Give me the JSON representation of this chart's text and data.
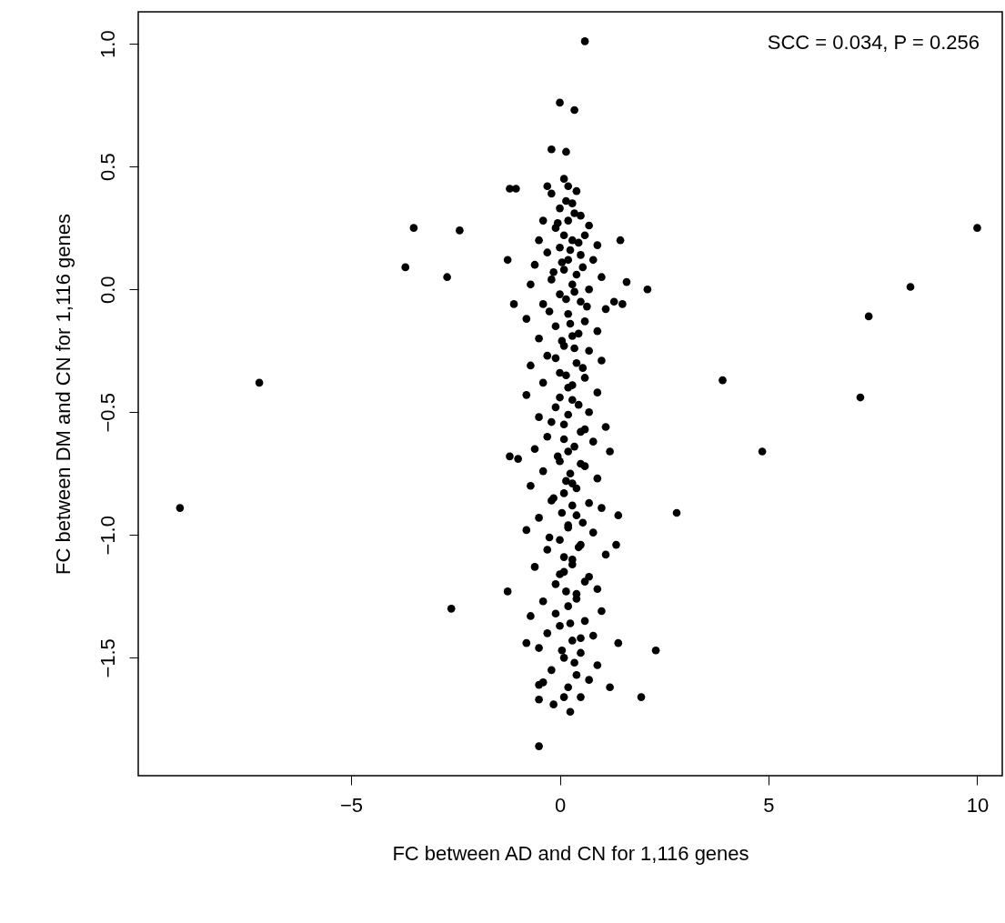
{
  "chart_data": {
    "type": "scatter",
    "xlabel": "FC between AD and CN for 1,116 genes",
    "ylabel": "FC between DM and CN for 1,116 genes",
    "annotations": [
      "SCC = 0.034, P = 0.256"
    ],
    "marker": "circle",
    "grid": false,
    "xlim": [
      -10.1,
      10.6
    ],
    "ylim": [
      -1.98,
      1.13
    ],
    "xticks": [
      {
        "value": -5,
        "label": "−5"
      },
      0,
      5,
      10
    ],
    "yticks": [
      {
        "value": -1.5,
        "label": "−1.5"
      },
      {
        "value": -1,
        "label": "−1.0"
      },
      {
        "value": -0.5,
        "label": "−0.5"
      },
      {
        "value": 0,
        "label": "0.0"
      },
      0.5,
      {
        "value": 1,
        "label": "1.0"
      }
    ],
    "series": [
      {
        "color": "#000000",
        "x": [
          -9.1,
          -7.2,
          -3.7,
          -3.5,
          -2.7,
          -2.4,
          -2.6,
          -1.25,
          2.8,
          3.9,
          4.85,
          7.2,
          7.4,
          8.4,
          10.0,
          2.3,
          1.95,
          2.1,
          0.6,
          0.0,
          0.35,
          -0.2,
          0.15,
          -1.2,
          -1.05,
          -0.5,
          -1.25,
          -1.1,
          1.45,
          1.3,
          1.5,
          1.6,
          1.4,
          1.35,
          1.4,
          1.2,
          -1.2,
          -1.0,
          -0.8,
          -0.5,
          -0.5,
          0.25,
          0.1,
          0.5,
          -0.15,
          0.1,
          0.2,
          -0.3,
          0.4,
          -0.2,
          0.3,
          0.0,
          0.5,
          -0.4,
          0.2,
          0.7,
          -0.1,
          0.1,
          0.6,
          -0.5,
          0.3,
          0.9,
          0.0,
          -0.3,
          0.5,
          0.2,
          0.8,
          -0.6,
          0.1,
          0.4,
          1.0,
          -0.2,
          0.3,
          -0.7,
          0.7,
          0.0,
          0.5,
          -0.4,
          1.1,
          0.2,
          -0.8,
          0.6,
          -0.1,
          0.9,
          0.3,
          -0.5,
          0.1,
          0.7,
          -0.3,
          1.0,
          0.4,
          -0.7,
          0.0,
          0.6,
          -0.4,
          0.2,
          0.9,
          -0.8,
          0.3,
          -0.1,
          0.7,
          -0.5,
          0.1,
          1.1,
          0.5,
          -0.3,
          0.8,
          -0.6,
          0.2,
          1.2,
          0.0,
          0.6,
          -0.4,
          0.9,
          0.3,
          -0.7,
          0.1,
          -0.2,
          0.7,
          1.0,
          0.4,
          -0.5,
          0.2,
          -0.8,
          0.8,
          0.0,
          0.5,
          -0.3,
          1.1,
          0.3,
          -0.6,
          0.1,
          0.7,
          -0.1,
          0.9,
          0.4,
          -0.4,
          0.2,
          1.0,
          -0.7,
          0.6,
          0.0,
          -0.3,
          0.8,
          0.3,
          -0.5,
          0.5,
          0.1,
          0.9,
          -0.2,
          0.4,
          0.7,
          -0.4,
          0.2,
          0.15,
          0.35,
          -0.05,
          0.45,
          0.25,
          0.05,
          0.55,
          -0.15,
          0.35,
          0.15,
          0.65,
          -0.25,
          0.25,
          0.45,
          0.05,
          0.35,
          -0.1,
          0.55,
          0.15,
          0.3,
          0.0,
          0.45,
          0.2,
          -0.2,
          0.6,
          0.1,
          0.35,
          -0.05,
          0.5,
          0.25,
          0.15,
          0.4,
          -0.15,
          0.3,
          0.05,
          0.55,
          0.2,
          -0.25,
          0.45,
          0.1,
          0.3,
          0.0,
          0.6,
          0.15,
          0.4,
          -0.1,
          0.25,
          0.5,
          0.05,
          0.35
        ],
        "values": [
          -0.89,
          -0.38,
          0.09,
          0.25,
          0.05,
          0.24,
          -1.3,
          -1.23,
          -0.91,
          -0.37,
          -0.66,
          -0.44,
          -0.11,
          0.01,
          0.25,
          -1.47,
          -1.66,
          0.0,
          1.01,
          0.76,
          0.73,
          0.57,
          0.56,
          0.41,
          0.41,
          -1.86,
          0.12,
          -0.06,
          0.2,
          -0.05,
          -0.06,
          0.03,
          -0.92,
          -1.04,
          -1.44,
          -1.62,
          -0.68,
          -0.69,
          -1.44,
          -1.61,
          -1.67,
          -1.72,
          -1.66,
          -1.66,
          -1.69,
          0.45,
          0.42,
          0.42,
          0.4,
          0.39,
          0.35,
          0.33,
          0.3,
          0.28,
          0.28,
          0.26,
          0.25,
          0.22,
          0.22,
          0.2,
          0.2,
          0.18,
          0.17,
          0.15,
          0.14,
          0.12,
          0.12,
          0.1,
          0.08,
          0.06,
          0.05,
          0.04,
          0.02,
          0.02,
          0.0,
          -0.02,
          -0.05,
          -0.06,
          -0.08,
          -0.1,
          -0.12,
          -0.13,
          -0.15,
          -0.17,
          -0.19,
          -0.2,
          -0.23,
          -0.25,
          -0.27,
          -0.29,
          -0.3,
          -0.31,
          -0.34,
          -0.36,
          -0.38,
          -0.4,
          -0.42,
          -0.43,
          -0.45,
          -0.48,
          -0.5,
          -0.52,
          -0.55,
          -0.56,
          -0.58,
          -0.6,
          -0.62,
          -0.65,
          -0.66,
          -0.66,
          -0.7,
          -0.72,
          -0.74,
          -0.77,
          -0.79,
          -0.8,
          -0.83,
          -0.86,
          -0.87,
          -0.89,
          -0.92,
          -0.93,
          -0.96,
          -0.98,
          -0.99,
          -1.02,
          -1.04,
          -1.06,
          -1.08,
          -1.1,
          -1.13,
          -1.15,
          -1.17,
          -1.2,
          -1.22,
          -1.24,
          -1.27,
          -1.29,
          -1.31,
          -1.33,
          -1.35,
          -1.37,
          -1.4,
          -1.41,
          -1.43,
          -1.46,
          -1.48,
          -1.5,
          -1.53,
          -1.55,
          -1.57,
          -1.59,
          -1.6,
          -1.62,
          0.36,
          0.31,
          0.27,
          0.19,
          0.16,
          0.11,
          0.09,
          0.07,
          -0.01,
          -0.04,
          -0.07,
          -0.09,
          -0.14,
          -0.18,
          -0.21,
          -0.24,
          -0.28,
          -0.32,
          -0.35,
          -0.39,
          -0.44,
          -0.47,
          -0.51,
          -0.54,
          -0.57,
          -0.61,
          -0.64,
          -0.68,
          -0.71,
          -0.75,
          -0.78,
          -0.81,
          -0.85,
          -0.88,
          -0.91,
          -0.95,
          -0.97,
          -1.01,
          -1.05,
          -1.09,
          -1.12,
          -1.16,
          -1.19,
          -1.23,
          -1.26,
          -1.32,
          -1.36,
          -1.42,
          -1.47,
          -1.52
        ]
      }
    ]
  }
}
